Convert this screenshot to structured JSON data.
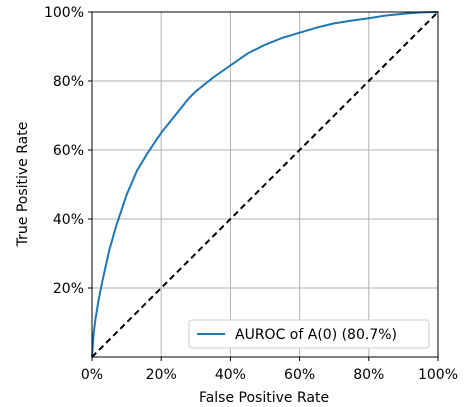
{
  "chart_data": {
    "type": "line",
    "title": "",
    "xlabel": "False Positive Rate",
    "ylabel": "True Positive Rate",
    "xlim": [
      0,
      1
    ],
    "ylim": [
      0,
      1
    ],
    "grid": true,
    "legend_position": "bottom-right",
    "x_ticks": [
      {
        "value": 0.0,
        "label": "0%"
      },
      {
        "value": 0.2,
        "label": "20%"
      },
      {
        "value": 0.4,
        "label": "40%"
      },
      {
        "value": 0.6,
        "label": "60%"
      },
      {
        "value": 0.8,
        "label": "80%"
      },
      {
        "value": 1.0,
        "label": "100%"
      }
    ],
    "y_ticks": [
      {
        "value": 0.2,
        "label": "20%"
      },
      {
        "value": 0.4,
        "label": "40%"
      },
      {
        "value": 0.6,
        "label": "60%"
      },
      {
        "value": 0.8,
        "label": "80%"
      },
      {
        "value": 1.0,
        "label": "100%"
      }
    ],
    "series": [
      {
        "name": "AUROC of A(0) (80.7%)",
        "color": "#1f77b4",
        "style": "solid",
        "x": [
          0,
          0.005,
          0.01,
          0.02,
          0.03,
          0.05,
          0.07,
          0.1,
          0.13,
          0.16,
          0.2,
          0.24,
          0.28,
          0.3,
          0.35,
          0.4,
          0.45,
          0.5,
          0.55,
          0.6,
          0.65,
          0.7,
          0.75,
          0.8,
          0.85,
          0.9,
          0.95,
          1.0
        ],
        "y": [
          0,
          0.07,
          0.11,
          0.17,
          0.22,
          0.31,
          0.38,
          0.47,
          0.54,
          0.59,
          0.65,
          0.7,
          0.75,
          0.77,
          0.81,
          0.845,
          0.88,
          0.905,
          0.925,
          0.94,
          0.955,
          0.967,
          0.975,
          0.982,
          0.99,
          0.995,
          0.999,
          1.0
        ]
      },
      {
        "name": "",
        "color": "#000000",
        "style": "dashed",
        "x": [
          0,
          1
        ],
        "y": [
          0,
          1
        ]
      }
    ]
  }
}
